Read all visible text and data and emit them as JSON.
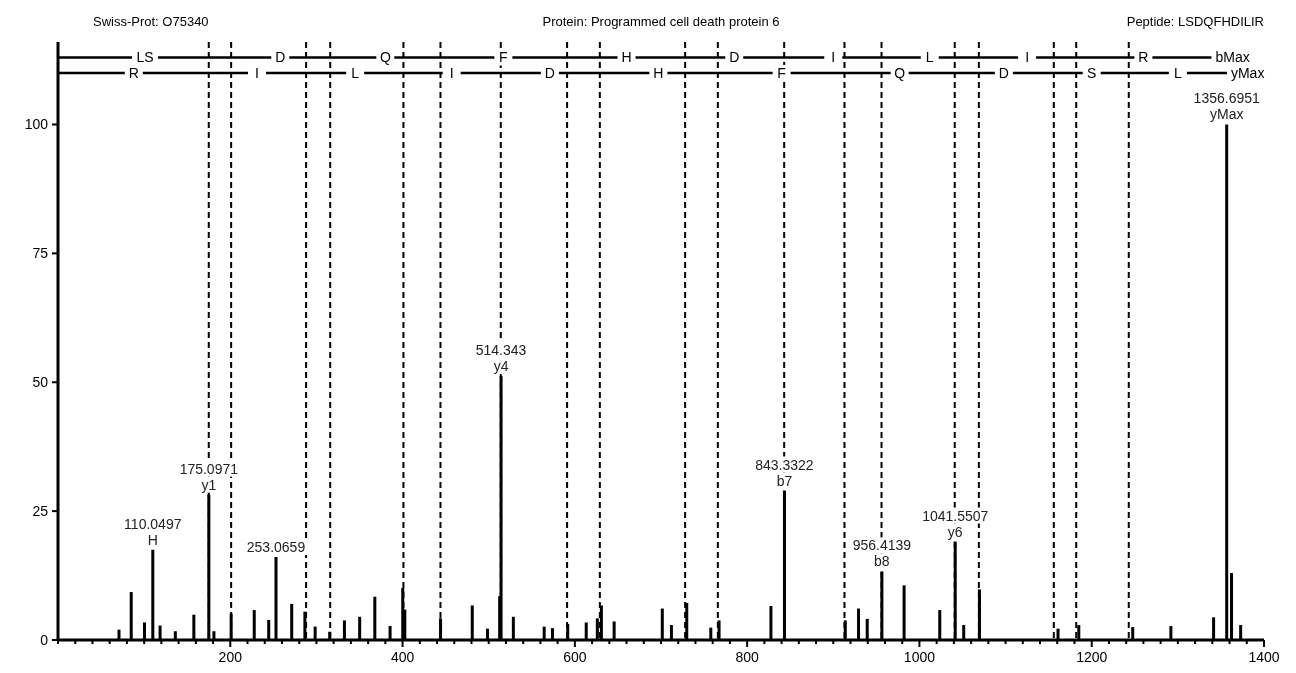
{
  "chart_data": {
    "type": "bar",
    "title": "Protein: Programmed cell death protein 6",
    "xlim": [
      0,
      1400
    ],
    "ylim": [
      0,
      116
    ],
    "xticks": [
      {
        "value": 0,
        "label": null
      },
      {
        "value": 20,
        "label": null
      },
      {
        "value": 40,
        "label": null
      },
      {
        "value": 60,
        "label": null
      },
      {
        "value": 80,
        "label": null
      },
      {
        "value": 100,
        "label": null
      },
      {
        "value": 120,
        "label": null
      },
      {
        "value": 140,
        "label": null
      },
      {
        "value": 160,
        "label": null
      },
      {
        "value": 180,
        "label": null
      },
      200,
      {
        "value": 220,
        "label": null
      },
      {
        "value": 240,
        "label": null
      },
      {
        "value": 260,
        "label": null
      },
      {
        "value": 280,
        "label": null
      },
      {
        "value": 300,
        "label": null
      },
      {
        "value": 320,
        "label": null
      },
      {
        "value": 340,
        "label": null
      },
      {
        "value": 360,
        "label": null
      },
      {
        "value": 380,
        "label": null
      },
      400,
      {
        "value": 420,
        "label": null
      },
      {
        "value": 440,
        "label": null
      },
      {
        "value": 460,
        "label": null
      },
      {
        "value": 480,
        "label": null
      },
      {
        "value": 500,
        "label": null
      },
      {
        "value": 520,
        "label": null
      },
      {
        "value": 540,
        "label": null
      },
      {
        "value": 560,
        "label": null
      },
      {
        "value": 580,
        "label": null
      },
      600,
      {
        "value": 620,
        "label": null
      },
      {
        "value": 640,
        "label": null
      },
      {
        "value": 660,
        "label": null
      },
      {
        "value": 680,
        "label": null
      },
      {
        "value": 700,
        "label": null
      },
      {
        "value": 720,
        "label": null
      },
      {
        "value": 740,
        "label": null
      },
      {
        "value": 760,
        "label": null
      },
      {
        "value": 780,
        "label": null
      },
      800,
      {
        "value": 820,
        "label": null
      },
      {
        "value": 840,
        "label": null
      },
      {
        "value": 860,
        "label": null
      },
      {
        "value": 880,
        "label": null
      },
      {
        "value": 900,
        "label": null
      },
      {
        "value": 920,
        "label": null
      },
      {
        "value": 940,
        "label": null
      },
      {
        "value": 960,
        "label": null
      },
      {
        "value": 980,
        "label": null
      },
      1000,
      {
        "value": 1020,
        "label": null
      },
      {
        "value": 1040,
        "label": null
      },
      {
        "value": 1060,
        "label": null
      },
      {
        "value": 1080,
        "label": null
      },
      {
        "value": 1100,
        "label": null
      },
      {
        "value": 1120,
        "label": null
      },
      {
        "value": 1140,
        "label": null
      },
      {
        "value": 1160,
        "label": null
      },
      {
        "value": 1180,
        "label": null
      },
      1200,
      {
        "value": 1220,
        "label": null
      },
      {
        "value": 1240,
        "label": null
      },
      {
        "value": 1260,
        "label": null
      },
      {
        "value": 1280,
        "label": null
      },
      {
        "value": 1300,
        "label": null
      },
      {
        "value": 1320,
        "label": null
      },
      {
        "value": 1340,
        "label": null
      },
      {
        "value": 1360,
        "label": null
      },
      {
        "value": 1380,
        "label": null
      },
      1400
    ],
    "yticks": [
      0,
      25,
      50,
      75,
      100
    ],
    "series": [
      {
        "color": "#000000",
        "x": [
          70.8,
          85,
          100.4,
          110.0497,
          118.5,
          136.2,
          157.7,
          175.0971,
          181,
          201,
          227.8,
          244.6,
          253.0659,
          271.3,
          286.6,
          298.5,
          315.4,
          332.5,
          350.2,
          367.8,
          385.5,
          400.2,
          402.6,
          444.1,
          480.9,
          498.6,
          512.7,
          514.343,
          528.6,
          564.4,
          574,
          591.7,
          613.2,
          626.1,
          630.8,
          645.6,
          701.5,
          712.1,
          729.9,
          757.8,
          767.4,
          827.6,
          843.3322,
          913.9,
          929.3,
          939.4,
          956.4139,
          982.2,
          1023.6,
          1041.5507,
          1051.4,
          1069.7,
          1160.9,
          1185,
          1247.6,
          1291.9,
          1341.5,
          1356.6951,
          1362.3,
          1372.9
        ],
        "values": [
          2.0,
          9.3,
          3.4,
          17.5,
          2.8,
          1.7,
          4.9,
          28.2,
          1.7,
          5.1,
          5.8,
          3.9,
          16.1,
          7.0,
          5.5,
          2.6,
          1.6,
          3.8,
          4.5,
          8.4,
          2.7,
          10.1,
          5.9,
          4.2,
          6.7,
          2.2,
          8.5,
          51.2,
          4.5,
          2.6,
          2.3,
          3.1,
          3.4,
          4.2,
          6.7,
          3.6,
          6.1,
          2.9,
          7.2,
          2.4,
          3.8,
          6.6,
          29.0,
          3.8,
          6.1,
          4.1,
          13.3,
          10.6,
          5.8,
          19.1,
          2.9,
          9.8,
          2.2,
          2.9,
          2.5,
          2.7,
          4.4,
          100,
          13.0,
          2.9
        ]
      },
      {
        "type": "line",
        "color": "#000000",
        "x": [
          1,
          201,
          316,
          444,
          591,
          728,
          843,
          956,
          1069,
          1182,
          1339
        ],
        "values": [
          113,
          113,
          113,
          113,
          113,
          113,
          113,
          113,
          113,
          113,
          113
        ]
      },
      {
        "type": "line",
        "color": "#000000",
        "x": [
          1,
          175,
          288,
          401,
          514,
          629,
          766,
          913,
          1041,
          1156,
          1243,
          1357
        ],
        "values": [
          110,
          110,
          110,
          110,
          110,
          110,
          110,
          110,
          110,
          110,
          110,
          110
        ]
      }
    ],
    "ref_lines": [
      {
        "axis": "x",
        "value": 201,
        "line_style": "dashed"
      },
      {
        "axis": "x",
        "value": 316,
        "line_style": "dashed"
      },
      {
        "axis": "x",
        "value": 444,
        "line_style": "dashed"
      },
      {
        "axis": "x",
        "value": 591,
        "line_style": "dashed"
      },
      {
        "axis": "x",
        "value": 728,
        "line_style": "dashed"
      },
      {
        "axis": "x",
        "value": 843,
        "line_style": "dashed"
      },
      {
        "axis": "x",
        "value": 956,
        "line_style": "dashed"
      },
      {
        "axis": "x",
        "value": 1069,
        "line_style": "dashed"
      },
      {
        "axis": "x",
        "value": 1182,
        "line_style": "dashed"
      },
      {
        "axis": "x",
        "value": 175,
        "line_style": "dashed"
      },
      {
        "axis": "x",
        "value": 288,
        "line_style": "dashed"
      },
      {
        "axis": "x",
        "value": 401,
        "line_style": "dashed"
      },
      {
        "axis": "x",
        "value": 514,
        "line_style": "dashed"
      },
      {
        "axis": "x",
        "value": 629,
        "line_style": "dashed"
      },
      {
        "axis": "x",
        "value": 766,
        "line_style": "dashed"
      },
      {
        "axis": "x",
        "value": 913,
        "line_style": "dashed"
      },
      {
        "axis": "x",
        "value": 1041,
        "line_style": "dashed"
      },
      {
        "axis": "x",
        "value": 1156,
        "line_style": "dashed"
      },
      {
        "axis": "x",
        "value": 1243,
        "line_style": "dashed"
      }
    ],
    "annotations": [
      "Swiss-Prot: O75340",
      "Peptide: LSDQFHDILIR",
      {
        "text": "110.0497\nH",
        "x": 110.0497,
        "y": 17.5
      },
      {
        "text": "175.0971\ny1",
        "x": 175.0971,
        "y": 28.2
      },
      {
        "text": "253.0659",
        "x": 253.0659,
        "y": 16.1
      },
      {
        "text": "514.343\ny4",
        "x": 514.343,
        "y": 51.2
      },
      {
        "text": "843.3322\nb7",
        "x": 843.3322,
        "y": 29.0
      },
      {
        "text": "956.4139\nb8",
        "x": 956.4139,
        "y": 13.3
      },
      {
        "text": "1041.5507\ny6",
        "x": 1041.5507,
        "y": 19.1
      },
      {
        "text": "1356.6951\nyMax",
        "x": 1356.6951,
        "y": 100
      },
      {
        "text": "LS",
        "x": 101,
        "y": 113
      },
      {
        "text": "D",
        "x": 258,
        "y": 113
      },
      {
        "text": "Q",
        "x": 380,
        "y": 113
      },
      {
        "text": "F",
        "x": 517,
        "y": 113
      },
      {
        "text": "H",
        "x": 660,
        "y": 113
      },
      {
        "text": "D",
        "x": 785,
        "y": 113
      },
      {
        "text": "I",
        "x": 900,
        "y": 113
      },
      {
        "text": "L",
        "x": 1012,
        "y": 113
      },
      {
        "text": "I",
        "x": 1125,
        "y": 113
      },
      {
        "text": "R",
        "x": 1260,
        "y": 113
      },
      {
        "text": "R",
        "x": 88,
        "y": 110
      },
      {
        "text": "I",
        "x": 231,
        "y": 110
      },
      {
        "text": "L",
        "x": 345,
        "y": 110
      },
      {
        "text": "I",
        "x": 457,
        "y": 110
      },
      {
        "text": "D",
        "x": 571,
        "y": 110
      },
      {
        "text": "H",
        "x": 697,
        "y": 110
      },
      {
        "text": "F",
        "x": 840,
        "y": 110
      },
      {
        "text": "Q",
        "x": 977,
        "y": 110
      },
      {
        "text": "D",
        "x": 1098,
        "y": 110
      },
      {
        "text": "S",
        "x": 1200,
        "y": 110
      },
      {
        "text": "L",
        "x": 1300,
        "y": 110
      },
      {
        "text": "bMax",
        "x": 1339,
        "y": 113
      },
      {
        "text": "yMax",
        "x": 1357,
        "y": 110
      }
    ]
  }
}
